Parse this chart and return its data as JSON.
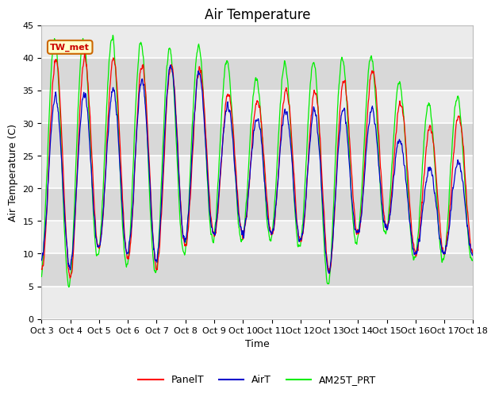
{
  "title": "Air Temperature",
  "ylabel": "Air Temperature (C)",
  "xlabel": "Time",
  "annotation": "TW_met",
  "ylim": [
    0,
    45
  ],
  "xlim": [
    0,
    15
  ],
  "tick_labels": [
    "Oct 3",
    "Oct 4",
    "Oct 5",
    "Oct 6",
    "Oct 7",
    "Oct 8",
    "Oct 9",
    "Oct 10",
    "Oct 11",
    "Oct 12",
    "Oct 13",
    "Oct 14",
    "Oct 15",
    "Oct 16",
    "Oct 17",
    "Oct 18"
  ],
  "yticks": [
    0,
    5,
    10,
    15,
    20,
    25,
    30,
    35,
    40,
    45
  ],
  "color_panel": "#ff0000",
  "color_air": "#0000cc",
  "color_am25t": "#00ee00",
  "bg_light": "#ebebeb",
  "bg_dark": "#d8d8d8",
  "grid_color": "#ffffff",
  "legend_labels": [
    "PanelT",
    "AirT",
    "AM25T_PRT"
  ],
  "title_fontsize": 12,
  "label_fontsize": 9,
  "tick_fontsize": 8,
  "day_patterns_panel": [
    [
      7,
      40
    ],
    [
      6,
      40
    ],
    [
      11,
      40
    ],
    [
      9,
      40
    ],
    [
      8,
      38
    ],
    [
      11,
      40
    ],
    [
      13,
      37
    ],
    [
      13,
      32
    ],
    [
      13,
      35
    ],
    [
      12,
      35
    ],
    [
      7,
      35
    ],
    [
      13,
      38
    ],
    [
      14,
      38
    ],
    [
      10,
      28
    ],
    [
      10,
      31
    ]
  ],
  "day_patterns_air": [
    [
      9,
      34
    ],
    [
      8,
      34
    ],
    [
      11,
      35
    ],
    [
      10,
      35
    ],
    [
      9,
      38
    ],
    [
      12,
      40
    ],
    [
      13,
      35
    ],
    [
      13,
      30
    ],
    [
      13,
      32
    ],
    [
      12,
      32
    ],
    [
      7,
      32
    ],
    [
      13,
      32
    ],
    [
      14,
      32
    ],
    [
      10,
      22
    ],
    [
      10,
      24
    ]
  ],
  "day_patterns_am25t": [
    [
      6,
      43
    ],
    [
      5,
      43
    ],
    [
      10,
      43
    ],
    [
      8,
      43
    ],
    [
      7,
      42
    ],
    [
      10,
      41
    ],
    [
      12,
      43
    ],
    [
      12,
      35
    ],
    [
      12,
      39
    ],
    [
      11,
      39
    ],
    [
      5,
      40
    ],
    [
      12,
      40
    ],
    [
      13,
      40
    ],
    [
      9,
      32
    ],
    [
      9,
      34
    ]
  ]
}
